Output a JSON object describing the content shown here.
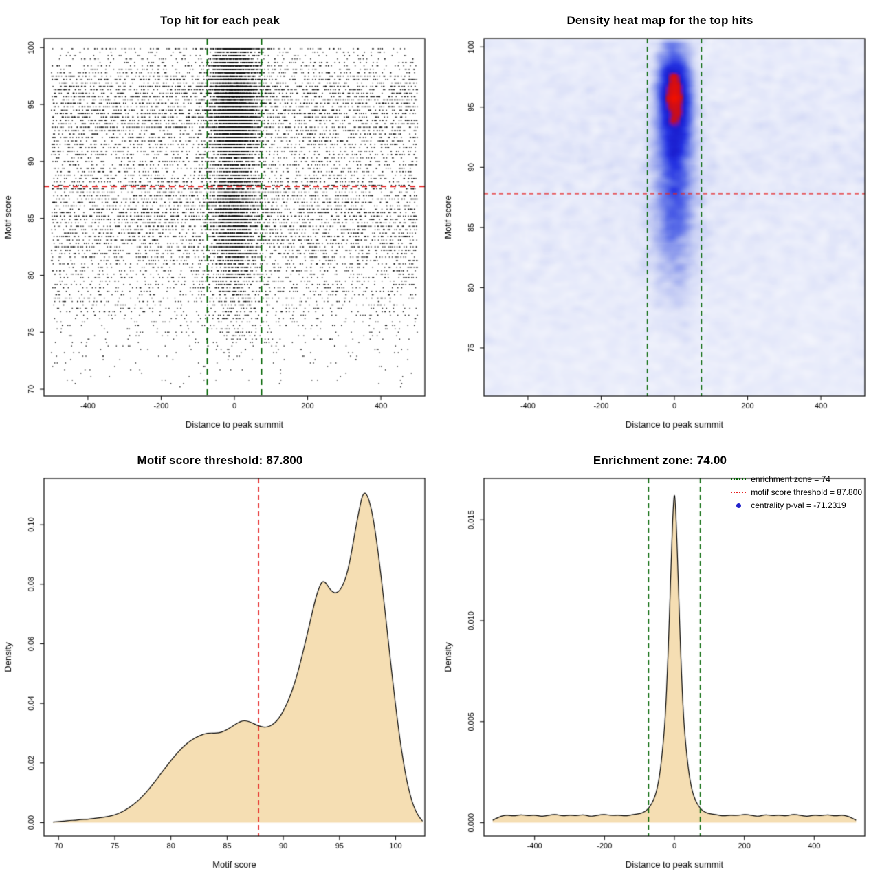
{
  "panels": [
    {
      "title": "Top hit for each peak"
    },
    {
      "title": "Density heat map for the top hits"
    },
    {
      "title": "Motif score threshold: 87.800"
    },
    {
      "title": "Enrichment zone: 74.00"
    }
  ],
  "legend": {
    "items": [
      {
        "style": "dotted-line",
        "color": "#006400",
        "label": "enrichment zone = 74"
      },
      {
        "style": "dotted-line",
        "color": "#E62222",
        "label": "motif score threshold = 87.800"
      },
      {
        "style": "point",
        "color": "#2222CC",
        "label": "centrality p-val = -71.2319"
      }
    ]
  },
  "values": {
    "motif_score_threshold": 87.8,
    "enrichment_zone": 74,
    "centrality_pval": -71.2319
  },
  "chart_data": [
    {
      "type": "scatter",
      "title": "Top hit for each peak",
      "xlabel": "Distance to peak summit",
      "ylabel": "Motif score",
      "xlim": [
        -520,
        520
      ],
      "ylim": [
        69.4,
        100.8
      ],
      "xticks": [
        -400,
        -200,
        0,
        200,
        400
      ],
      "xtick_labels": [
        "-400",
        "-200",
        "0",
        "200",
        "400"
      ],
      "yticks": [
        70,
        75,
        80,
        85,
        90,
        95,
        100
      ],
      "ytick_labels": [
        "70",
        "75",
        "80",
        "85",
        "90",
        "95",
        "100"
      ],
      "point_color": "#000000",
      "hlines": [
        {
          "y": 87.8,
          "color": "#E62222",
          "width": 2,
          "dash": [
            8,
            6
          ]
        }
      ],
      "vlines": [
        {
          "x": -74,
          "color": "#006400",
          "width": 2,
          "dash": [
            9,
            6
          ]
        },
        {
          "x": 74,
          "color": "#006400",
          "width": 2,
          "dash": [
            9,
            6
          ]
        }
      ],
      "generator": {
        "seed": 7,
        "point_size": 1.4,
        "alpha": 0.9,
        "groups": [
          {
            "n": 8000,
            "x": {
              "dist": "normal",
              "mean": 0,
              "sd": 33
            },
            "y": {
              "dist": "mixture",
              "components": [
                {
                  "w": 0.46,
                  "mean": 96.3,
                  "sd": 2.1
                },
                {
                  "w": 0.2,
                  "mean": 92.7,
                  "sd": 1.7
                },
                {
                  "w": 0.26,
                  "mean": 86.2,
                  "sd": 2.6
                },
                {
                  "w": 0.08,
                  "mean": 81.0,
                  "sd": 3.2
                }
              ],
              "clip": [
                70.2,
                100
              ],
              "quantize": 0.3
            }
          },
          {
            "n": 10500,
            "x": {
              "dist": "uniform",
              "min": -500,
              "max": 500
            },
            "y": {
              "dist": "mixture",
              "components": [
                {
                  "w": 0.28,
                  "mean": 95.9,
                  "sd": 2.2
                },
                {
                  "w": 0.16,
                  "mean": 92.5,
                  "sd": 1.9
                },
                {
                  "w": 0.36,
                  "mean": 85.9,
                  "sd": 3.0
                },
                {
                  "w": 0.2,
                  "mean": 79.8,
                  "sd": 4.0
                }
              ],
              "clip": [
                70.2,
                100
              ],
              "quantize": 0.3
            }
          }
        ]
      }
    },
    {
      "type": "heatmap",
      "title": "Density heat map for the top hits",
      "xlabel": "Distance to peak summit",
      "ylabel": "Motif score",
      "xlim": [
        -520,
        520
      ],
      "ylim": [
        71,
        100.7
      ],
      "xticks": [
        -400,
        -200,
        0,
        200,
        400
      ],
      "xtick_labels": [
        "-400",
        "-200",
        "0",
        "200",
        "400"
      ],
      "yticks": [
        75,
        80,
        85,
        90,
        95,
        100
      ],
      "ytick_labels": [
        "75",
        "80",
        "85",
        "90",
        "95",
        "100"
      ],
      "hlines": [
        {
          "y": 87.8,
          "color": "#E62222",
          "width": 1.2,
          "dash": [
            6,
            5
          ]
        }
      ],
      "vlines": [
        {
          "x": -74,
          "color": "#006400",
          "width": 1.5,
          "dash": [
            7,
            5
          ]
        },
        {
          "x": 74,
          "color": "#006400",
          "width": 1.5,
          "dash": [
            7,
            5
          ]
        }
      ],
      "colormap": [
        {
          "pos": 0.0,
          "color": "#FFFFFF"
        },
        {
          "pos": 0.03,
          "color": "#F2F4FC"
        },
        {
          "pos": 0.08,
          "color": "#DCE1F8"
        },
        {
          "pos": 0.18,
          "color": "#A9B4F0"
        },
        {
          "pos": 0.33,
          "color": "#5B6EE8"
        },
        {
          "pos": 0.5,
          "color": "#2533E2"
        },
        {
          "pos": 0.64,
          "color": "#1B1FD0"
        },
        {
          "pos": 0.72,
          "color": "#6A14B4"
        },
        {
          "pos": 0.8,
          "color": "#C50D20"
        },
        {
          "pos": 1.0,
          "color": "#F01000"
        }
      ],
      "generator": {
        "seed": 11,
        "noise": 1.1,
        "blur_passes": 2,
        "grid": {
          "nx": 130,
          "ny": 170
        },
        "groups": [
          {
            "n": 6500,
            "x": {
              "dist": "normal",
              "mean": 0,
              "sd": 24
            },
            "y": {
              "dist": "mixture",
              "components": [
                {
                  "w": 0.55,
                  "mean": 96.4,
                  "sd": 2.0
                },
                {
                  "w": 0.25,
                  "mean": 93.0,
                  "sd": 2.0
                },
                {
                  "w": 0.2,
                  "mean": 88.5,
                  "sd": 3.2
                }
              ],
              "clip": [
                71.2,
                100.2
              ]
            }
          },
          {
            "n": 2600,
            "x": {
              "dist": "normal",
              "mean": 0,
              "sd": 40
            },
            "y": {
              "dist": "mixture",
              "components": [
                {
                  "w": 1,
                  "mean": 86.5,
                  "sd": 4.5
                }
              ],
              "clip": [
                71.2,
                100.2
              ]
            }
          },
          {
            "n": 2200,
            "x": {
              "dist": "uniform",
              "min": -520,
              "max": 520
            },
            "y": {
              "dist": "mixture",
              "components": [
                {
                  "w": 0.5,
                  "mean": 93,
                  "sd": 4
                },
                {
                  "w": 0.5,
                  "mean": 85,
                  "sd": 6
                }
              ],
              "clip": [
                71.2,
                100.2
              ]
            }
          }
        ]
      }
    },
    {
      "type": "area",
      "title": "Motif score threshold: 87.800",
      "xlabel": "Motif score",
      "ylabel": "Density",
      "xlim": [
        68.7,
        102.6
      ],
      "ylim": [
        -0.0045,
        0.1155
      ],
      "xticks": [
        70,
        75,
        80,
        85,
        90,
        95,
        100
      ],
      "xtick_labels": [
        "70",
        "75",
        "80",
        "85",
        "90",
        "95",
        "100"
      ],
      "yticks": [
        0,
        0.02,
        0.04,
        0.06,
        0.08,
        0.1
      ],
      "ytick_labels": [
        "0.00",
        "0.02",
        "0.04",
        "0.06",
        "0.08",
        "0.10"
      ],
      "fill": "#F5DEB3",
      "stroke": "#000000",
      "vlines": [
        {
          "x": 87.8,
          "color": "#E62222",
          "width": 1.6,
          "dash": [
            7,
            5
          ]
        }
      ],
      "curve": [
        [
          69.5,
          0.0002
        ],
        [
          70,
          0.0004
        ],
        [
          70.5,
          0.0005
        ],
        [
          71,
          0.0007
        ],
        [
          71.5,
          0.0008
        ],
        [
          72,
          0.001
        ],
        [
          72.5,
          0.0011
        ],
        [
          73,
          0.0013
        ],
        [
          73.5,
          0.0015
        ],
        [
          74,
          0.0018
        ],
        [
          74.5,
          0.0021
        ],
        [
          75,
          0.0026
        ],
        [
          75.5,
          0.0033
        ],
        [
          76,
          0.0043
        ],
        [
          76.5,
          0.0056
        ],
        [
          77,
          0.0071
        ],
        [
          77.5,
          0.0089
        ],
        [
          78,
          0.011
        ],
        [
          78.5,
          0.0134
        ],
        [
          79,
          0.0159
        ],
        [
          79.5,
          0.0184
        ],
        [
          80,
          0.0208
        ],
        [
          80.5,
          0.0231
        ],
        [
          81,
          0.0251
        ],
        [
          81.5,
          0.0268
        ],
        [
          82,
          0.0281
        ],
        [
          82.5,
          0.0291
        ],
        [
          83,
          0.0298
        ],
        [
          83.5,
          0.0301
        ],
        [
          84,
          0.03
        ],
        [
          84.5,
          0.0303
        ],
        [
          85,
          0.0312
        ],
        [
          85.5,
          0.0324
        ],
        [
          86,
          0.0336
        ],
        [
          86.4,
          0.0342
        ],
        [
          86.8,
          0.0341
        ],
        [
          87.2,
          0.0335
        ],
        [
          87.6,
          0.0328
        ],
        [
          88,
          0.0322
        ],
        [
          88.4,
          0.032
        ],
        [
          88.8,
          0.0324
        ],
        [
          89.2,
          0.0333
        ],
        [
          89.6,
          0.0349
        ],
        [
          90,
          0.0374
        ],
        [
          90.5,
          0.0413
        ],
        [
          91,
          0.0466
        ],
        [
          91.5,
          0.0533
        ],
        [
          92,
          0.0611
        ],
        [
          92.4,
          0.0676
        ],
        [
          92.8,
          0.0741
        ],
        [
          93.1,
          0.0781
        ],
        [
          93.4,
          0.0806
        ],
        [
          93.6,
          0.081
        ],
        [
          93.8,
          0.0804
        ],
        [
          94.1,
          0.0786
        ],
        [
          94.4,
          0.0773
        ],
        [
          94.7,
          0.077
        ],
        [
          95,
          0.0778
        ],
        [
          95.3,
          0.0796
        ],
        [
          95.6,
          0.0826
        ],
        [
          95.9,
          0.0872
        ],
        [
          96.2,
          0.0934
        ],
        [
          96.5,
          0.1
        ],
        [
          96.8,
          0.1058
        ],
        [
          97,
          0.1092
        ],
        [
          97.2,
          0.1108
        ],
        [
          97.4,
          0.1104
        ],
        [
          97.7,
          0.1075
        ],
        [
          98,
          0.1022
        ],
        [
          98.3,
          0.0948
        ],
        [
          98.6,
          0.086
        ],
        [
          98.9,
          0.0763
        ],
        [
          99.2,
          0.0661
        ],
        [
          99.5,
          0.0557
        ],
        [
          99.8,
          0.0456
        ],
        [
          100.1,
          0.0361
        ],
        [
          100.4,
          0.0275
        ],
        [
          100.7,
          0.0201
        ],
        [
          101,
          0.0139
        ],
        [
          101.3,
          0.0091
        ],
        [
          101.6,
          0.0055
        ],
        [
          101.9,
          0.003
        ],
        [
          102.2,
          0.0013
        ],
        [
          102.4,
          0.0005
        ]
      ]
    },
    {
      "type": "area",
      "title": "Enrichment zone: 74.00",
      "xlabel": "Distance to peak summit",
      "ylabel": "Density",
      "xlim": [
        -545,
        545
      ],
      "ylim": [
        -0.00066,
        0.01705
      ],
      "xticks": [
        -400,
        -200,
        0,
        200,
        400
      ],
      "xtick_labels": [
        "-400",
        "-200",
        "0",
        "200",
        "400"
      ],
      "yticks": [
        0,
        0.005,
        0.01,
        0.015
      ],
      "ytick_labels": [
        "0.000",
        "0.005",
        "0.010",
        "0.015"
      ],
      "fill": "#F5DEB3",
      "stroke": "#000000",
      "vlines": [
        {
          "x": -74,
          "color": "#006400",
          "width": 1.6,
          "dash": [
            7,
            5
          ]
        },
        {
          "x": 74,
          "color": "#006400",
          "width": 1.6,
          "dash": [
            7,
            5
          ]
        }
      ],
      "legend": [
        "enrichment zone = 74",
        "motif score threshold = 87.800",
        "centrality p-val = -71.2319"
      ],
      "curve": [
        [
          -520,
          0.00012
        ],
        [
          -500,
          0.0003
        ],
        [
          -480,
          0.00038
        ],
        [
          -460,
          0.00032
        ],
        [
          -440,
          0.0004
        ],
        [
          -420,
          0.00034
        ],
        [
          -400,
          0.00038
        ],
        [
          -380,
          0.0003
        ],
        [
          -360,
          0.00036
        ],
        [
          -340,
          0.00042
        ],
        [
          -320,
          0.00032
        ],
        [
          -300,
          0.00038
        ],
        [
          -280,
          0.00034
        ],
        [
          -260,
          0.0004
        ],
        [
          -240,
          0.0003
        ],
        [
          -220,
          0.00036
        ],
        [
          -200,
          0.00042
        ],
        [
          -180,
          0.00034
        ],
        [
          -160,
          0.00038
        ],
        [
          -140,
          0.00032
        ],
        [
          -120,
          0.0004
        ],
        [
          -100,
          0.00044
        ],
        [
          -90,
          0.0005
        ],
        [
          -80,
          0.0006
        ],
        [
          -70,
          0.0008
        ],
        [
          -60,
          0.0011
        ],
        [
          -50,
          0.0016
        ],
        [
          -40,
          0.0026
        ],
        [
          -30,
          0.0043
        ],
        [
          -25,
          0.0056
        ],
        [
          -20,
          0.0075
        ],
        [
          -15,
          0.0098
        ],
        [
          -10,
          0.0126
        ],
        [
          -5,
          0.015
        ],
        [
          -2,
          0.016
        ],
        [
          0,
          0.0163
        ],
        [
          2,
          0.016
        ],
        [
          5,
          0.015
        ],
        [
          10,
          0.0126
        ],
        [
          15,
          0.0098
        ],
        [
          20,
          0.0075
        ],
        [
          25,
          0.0056
        ],
        [
          30,
          0.0043
        ],
        [
          40,
          0.0026
        ],
        [
          50,
          0.0016
        ],
        [
          60,
          0.0011
        ],
        [
          70,
          0.0008
        ],
        [
          80,
          0.0006
        ],
        [
          90,
          0.0005
        ],
        [
          100,
          0.00044
        ],
        [
          120,
          0.0004
        ],
        [
          140,
          0.00032
        ],
        [
          160,
          0.00038
        ],
        [
          180,
          0.00034
        ],
        [
          200,
          0.00042
        ],
        [
          220,
          0.00036
        ],
        [
          240,
          0.0003
        ],
        [
          260,
          0.0004
        ],
        [
          280,
          0.00034
        ],
        [
          300,
          0.00038
        ],
        [
          320,
          0.00032
        ],
        [
          340,
          0.00042
        ],
        [
          360,
          0.00036
        ],
        [
          380,
          0.0003
        ],
        [
          400,
          0.00038
        ],
        [
          420,
          0.00034
        ],
        [
          440,
          0.0004
        ],
        [
          460,
          0.00032
        ],
        [
          480,
          0.00038
        ],
        [
          500,
          0.0003
        ],
        [
          520,
          0.00012
        ]
      ]
    }
  ]
}
